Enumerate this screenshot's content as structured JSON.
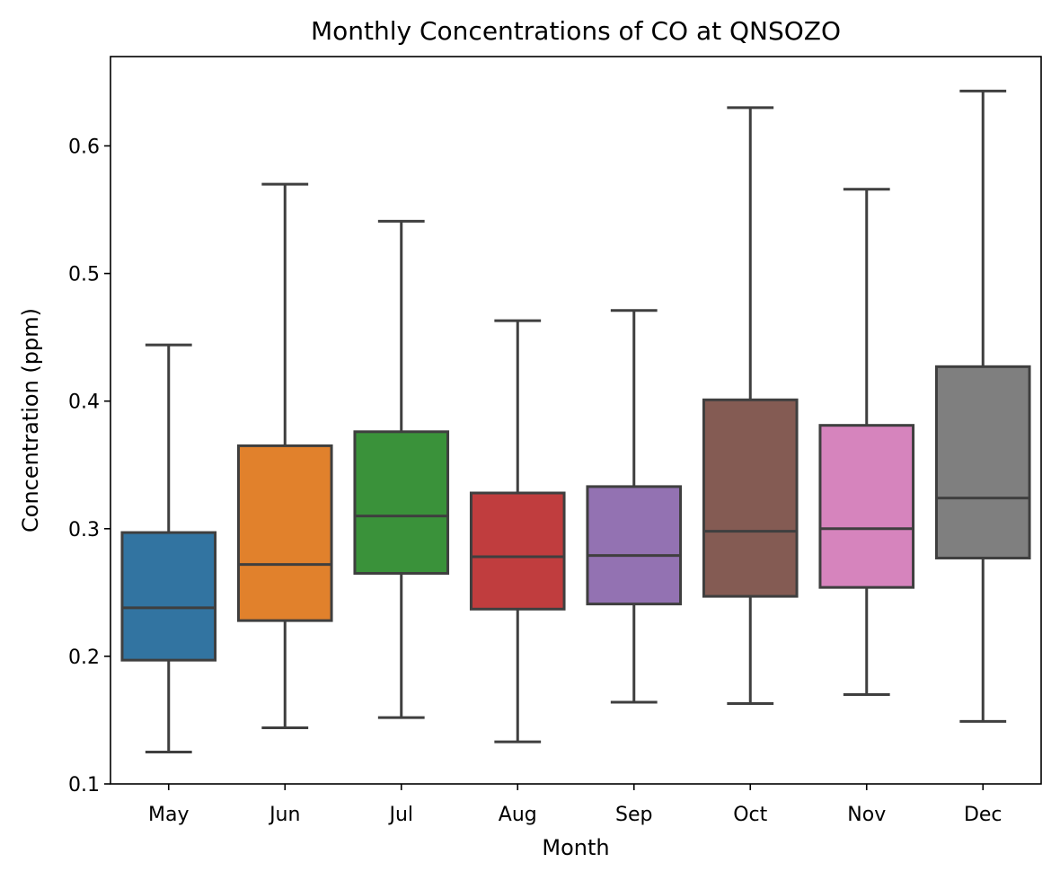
{
  "chart_data": {
    "type": "box",
    "title": "Monthly Concentrations of CO at QNSOZO",
    "xlabel": "Month",
    "ylabel": "Concentration (ppm)",
    "ylim": [
      0.1,
      0.67
    ],
    "yticks": [
      0.1,
      0.2,
      0.3,
      0.4,
      0.5,
      0.6
    ],
    "ytick_labels": [
      "0.1",
      "0.2",
      "0.3",
      "0.4",
      "0.5",
      "0.6"
    ],
    "grid": false,
    "legend": "none",
    "categories": [
      "May",
      "Jun",
      "Jul",
      "Aug",
      "Sep",
      "Oct",
      "Nov",
      "Dec"
    ],
    "boxes": [
      {
        "category": "May",
        "whisker_low": 0.125,
        "q1": 0.197,
        "median": 0.238,
        "q3": 0.297,
        "whisker_high": 0.444,
        "color": "#3274a1"
      },
      {
        "category": "Jun",
        "whisker_low": 0.144,
        "q1": 0.228,
        "median": 0.272,
        "q3": 0.365,
        "whisker_high": 0.57,
        "color": "#e1812c"
      },
      {
        "category": "Jul",
        "whisker_low": 0.152,
        "q1": 0.265,
        "median": 0.31,
        "q3": 0.376,
        "whisker_high": 0.541,
        "color": "#3a923a"
      },
      {
        "category": "Aug",
        "whisker_low": 0.133,
        "q1": 0.237,
        "median": 0.278,
        "q3": 0.328,
        "whisker_high": 0.463,
        "color": "#c03d3e"
      },
      {
        "category": "Sep",
        "whisker_low": 0.164,
        "q1": 0.241,
        "median": 0.279,
        "q3": 0.333,
        "whisker_high": 0.471,
        "color": "#9372b2"
      },
      {
        "category": "Oct",
        "whisker_low": 0.163,
        "q1": 0.247,
        "median": 0.298,
        "q3": 0.401,
        "whisker_high": 0.63,
        "color": "#845b53"
      },
      {
        "category": "Nov",
        "whisker_low": 0.17,
        "q1": 0.254,
        "median": 0.3,
        "q3": 0.381,
        "whisker_high": 0.566,
        "color": "#d684bd"
      },
      {
        "category": "Dec",
        "whisker_low": 0.149,
        "q1": 0.277,
        "median": 0.324,
        "q3": 0.427,
        "whisker_high": 0.643,
        "color": "#7f7f7f"
      }
    ],
    "line_color": "#3f3f3f",
    "frame_color": "#000000"
  }
}
